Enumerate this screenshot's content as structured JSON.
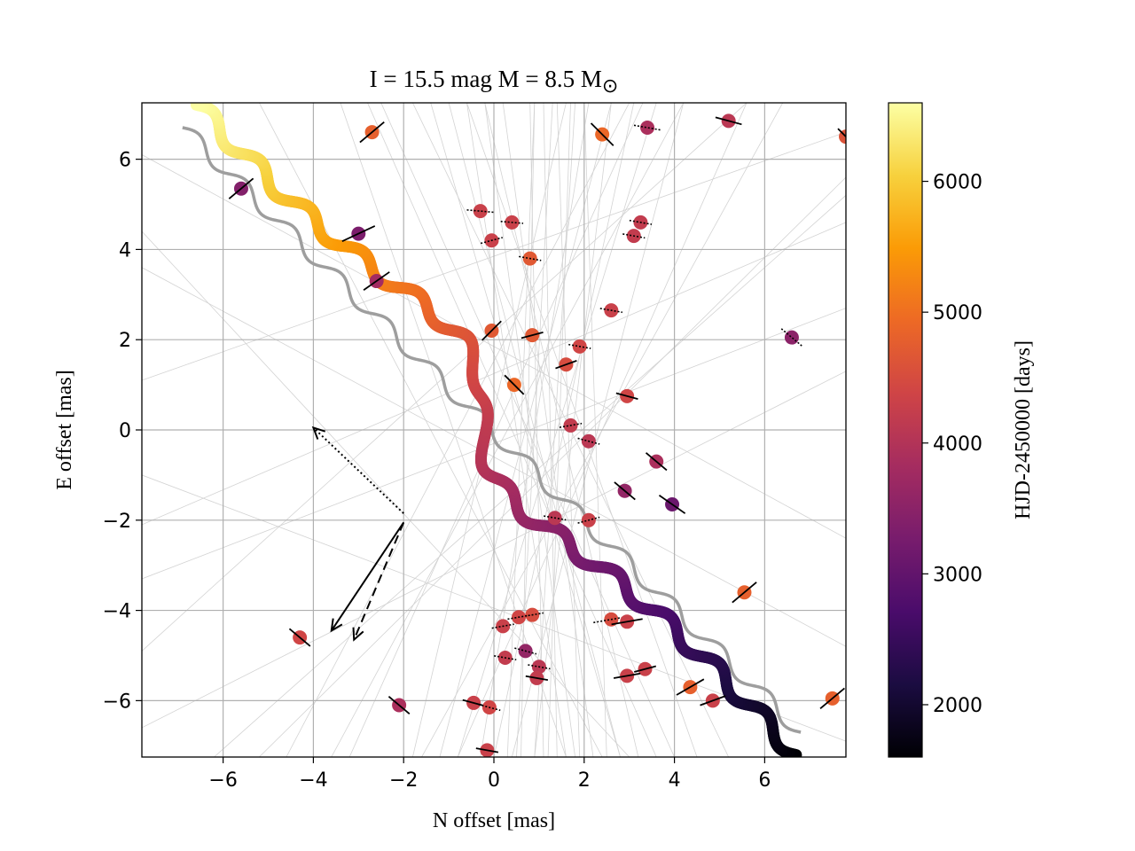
{
  "chart_data": {
    "type": "scatter",
    "title": "I = 15.5 mag  M = 8.5 M⊙",
    "title_parts": {
      "main": "I = 15.5 mag  M = 8.5 M",
      "subscript": "⊙"
    },
    "xlabel": "N offset [mas]",
    "ylabel": "E offset [mas]",
    "xlim": [
      -7.8,
      7.8
    ],
    "ylim": [
      -7.25,
      7.25
    ],
    "xticks": [
      -6,
      -4,
      -2,
      0,
      2,
      4,
      6
    ],
    "yticks": [
      -6,
      -4,
      -2,
      0,
      2,
      4,
      6
    ],
    "xtick_labels": [
      "−6",
      "−4",
      "−2",
      "0",
      "2",
      "4",
      "6"
    ],
    "ytick_labels": [
      "−6",
      "−4",
      "−2",
      "0",
      "2",
      "4",
      "6"
    ],
    "grid": true,
    "colorbar": {
      "label": "HJD-2450000 [days]",
      "range": [
        1600,
        6600
      ],
      "ticks": [
        2000,
        3000,
        4000,
        5000,
        6000
      ],
      "tick_labels": [
        "2000",
        "3000",
        "4000",
        "5000",
        "6000"
      ],
      "colormap": "inferno",
      "colors": [
        "#000004",
        "#1b0c41",
        "#4a0c6b",
        "#781c6d",
        "#a52c60",
        "#cf4446",
        "#ed6925",
        "#fb9b06",
        "#f7d13d",
        "#fcffa4"
      ]
    },
    "apparent_track": {
      "description": "thick colored source track",
      "start": [
        6.7,
        -7.2
      ],
      "end": [
        -6.6,
        7.2
      ],
      "time_range": [
        1600,
        6600
      ],
      "wiggle_amplitude": 0.17,
      "wiggle_periods": 13,
      "deflection_amplitude": 1.05,
      "deflection_center": [
        -0.3,
        0.3
      ],
      "deflection_width": 3.0
    },
    "reference_track": {
      "description": "gray undeflected reference track",
      "start": [
        6.8,
        -6.7
      ],
      "end": [
        -6.9,
        6.7
      ],
      "wiggle_amplitude": 0.15,
      "wiggle_periods": 13,
      "color": "#9e9e9e"
    },
    "background_lines": {
      "color": "#d3d3d3",
      "lines": [
        [
          -0.3,
          -7.25,
          2.1,
          7.25
        ],
        [
          0.5,
          -7.25,
          1.3,
          7.25
        ],
        [
          1.1,
          -7.25,
          0.8,
          7.25
        ],
        [
          0.9,
          -7.25,
          1.8,
          7.25
        ],
        [
          -1.2,
          -7.25,
          2.6,
          7.25
        ],
        [
          2.2,
          -7.25,
          0.2,
          7.25
        ],
        [
          1.6,
          -7.25,
          -0.6,
          7.25
        ],
        [
          2.8,
          -7.25,
          -1.0,
          7.25
        ],
        [
          0.0,
          -7.25,
          3.1,
          7.25
        ],
        [
          -0.8,
          -7.25,
          3.6,
          7.25
        ],
        [
          3.2,
          -7.25,
          -0.2,
          7.25
        ],
        [
          1.9,
          -7.25,
          1.4,
          7.25
        ],
        [
          -3.6,
          -7.25,
          4.2,
          7.25
        ],
        [
          4.0,
          -7.25,
          -2.5,
          7.25
        ],
        [
          -4.6,
          -7.25,
          3.0,
          7.25
        ],
        [
          5.2,
          -7.25,
          -1.8,
          7.25
        ],
        [
          0.3,
          -7.25,
          0.9,
          7.25
        ],
        [
          1.4,
          -7.25,
          1.1,
          7.25
        ],
        [
          2.5,
          -7.25,
          2.0,
          7.25
        ],
        [
          -1.8,
          -7.25,
          1.6,
          7.25
        ],
        [
          -7.8,
          -2.1,
          7.8,
          4.6
        ],
        [
          -7.8,
          -6.6,
          7.8,
          1.3
        ],
        [
          -7.8,
          3.6,
          7.8,
          -4.8
        ],
        [
          -6.2,
          -7.25,
          7.8,
          5.2
        ],
        [
          -7.8,
          -4.9,
          5.6,
          7.25
        ],
        [
          -7.8,
          6.1,
          7.8,
          -2.4
        ],
        [
          -7.8,
          1.1,
          7.8,
          6.6
        ],
        [
          -7.8,
          -1.0,
          7.8,
          -6.9
        ],
        [
          -5.2,
          7.25,
          2.4,
          -7.25
        ],
        [
          -2.8,
          7.25,
          3.6,
          -7.25
        ],
        [
          -0.6,
          7.25,
          4.5,
          -7.25
        ],
        [
          3.3,
          7.25,
          -3.2,
          -7.25
        ],
        [
          6.4,
          7.25,
          -1.6,
          -7.25
        ],
        [
          7.8,
          5.6,
          -5.2,
          -7.25
        ],
        [
          -7.8,
          4.4,
          3.0,
          -7.25
        ],
        [
          0.9,
          7.25,
          0.6,
          -7.25
        ],
        [
          1.7,
          7.25,
          1.2,
          -7.25
        ],
        [
          -0.2,
          7.25,
          1.8,
          -7.25
        ],
        [
          2.6,
          7.25,
          0.9,
          -7.25
        ],
        [
          -1.4,
          7.25,
          2.8,
          -7.25
        ],
        [
          4.2,
          7.25,
          0.4,
          -7.25
        ],
        [
          -3.4,
          7.25,
          1.6,
          -7.25
        ],
        [
          5.6,
          7.25,
          -0.8,
          -7.25
        ],
        [
          -7.8,
          -3.3,
          7.8,
          2.7
        ]
      ]
    },
    "points": [
      {
        "x": -2.7,
        "y": 6.6,
        "t": 4800,
        "angle": 40,
        "len": 0.7,
        "err": "solid"
      },
      {
        "x": 2.4,
        "y": 6.55,
        "t": 4900,
        "angle": -45,
        "len": 0.7,
        "err": "solid"
      },
      {
        "x": 3.4,
        "y": 6.7,
        "t": 3900,
        "angle": -10,
        "len": 0.6,
        "err": "dotted"
      },
      {
        "x": 5.2,
        "y": 6.85,
        "t": 4100,
        "angle": -15,
        "len": 0.6,
        "err": "solid"
      },
      {
        "x": 7.8,
        "y": 6.5,
        "t": 4600,
        "angle": -45,
        "len": 0.5,
        "err": "solid"
      },
      {
        "x": -5.6,
        "y": 5.35,
        "t": 3400,
        "angle": 40,
        "len": 0.7,
        "err": "solid"
      },
      {
        "x": -0.3,
        "y": 4.85,
        "t": 4300,
        "angle": -5,
        "len": 0.6,
        "err": "dotted"
      },
      {
        "x": 0.4,
        "y": 4.6,
        "t": 4300,
        "angle": -5,
        "len": 0.5,
        "err": "dotted"
      },
      {
        "x": 3.25,
        "y": 4.6,
        "t": 4200,
        "angle": -10,
        "len": 0.5,
        "err": "dotted"
      },
      {
        "x": -3.0,
        "y": 4.35,
        "t": 3300,
        "angle": 25,
        "len": 0.8,
        "err": "solid"
      },
      {
        "x": -0.05,
        "y": 4.2,
        "t": 4300,
        "angle": 15,
        "len": 0.5,
        "err": "dotted"
      },
      {
        "x": 3.1,
        "y": 4.3,
        "t": 4200,
        "angle": -10,
        "len": 0.5,
        "err": "dotted"
      },
      {
        "x": 0.8,
        "y": 3.8,
        "t": 4700,
        "angle": -10,
        "len": 0.5,
        "err": "dotted"
      },
      {
        "x": -2.6,
        "y": 3.3,
        "t": 3800,
        "angle": 35,
        "len": 0.7,
        "err": "solid"
      },
      {
        "x": 2.6,
        "y": 2.65,
        "t": 4300,
        "angle": -10,
        "len": 0.5,
        "err": "dotted"
      },
      {
        "x": -0.05,
        "y": 2.2,
        "t": 4700,
        "angle": 45,
        "len": 0.6,
        "err": "solid"
      },
      {
        "x": 0.85,
        "y": 2.1,
        "t": 4700,
        "angle": 15,
        "len": 0.5,
        "err": "solid"
      },
      {
        "x": 6.6,
        "y": 2.05,
        "t": 3500,
        "angle": -40,
        "len": 0.6,
        "err": "dotted"
      },
      {
        "x": 1.9,
        "y": 1.85,
        "t": 4400,
        "angle": -10,
        "len": 0.5,
        "err": "dotted"
      },
      {
        "x": 1.6,
        "y": 1.45,
        "t": 4500,
        "angle": 20,
        "len": 0.5,
        "err": "solid"
      },
      {
        "x": 0.45,
        "y": 1.0,
        "t": 4900,
        "angle": -45,
        "len": 0.6,
        "err": "solid"
      },
      {
        "x": 2.95,
        "y": 0.75,
        "t": 4400,
        "angle": -15,
        "len": 0.5,
        "err": "solid"
      },
      {
        "x": 1.7,
        "y": 0.1,
        "t": 4200,
        "angle": 10,
        "len": 0.5,
        "err": "dotted"
      },
      {
        "x": 2.1,
        "y": -0.25,
        "t": 4100,
        "angle": -15,
        "len": 0.5,
        "err": "dotted"
      },
      {
        "x": 3.6,
        "y": -0.7,
        "t": 3900,
        "angle": -40,
        "len": 0.6,
        "err": "solid"
      },
      {
        "x": 2.9,
        "y": -1.35,
        "t": 3600,
        "angle": -40,
        "len": 0.6,
        "err": "solid"
      },
      {
        "x": 3.95,
        "y": -1.65,
        "t": 3100,
        "angle": -35,
        "len": 0.7,
        "err": "solid"
      },
      {
        "x": 1.35,
        "y": -1.95,
        "t": 4100,
        "angle": -10,
        "len": 0.5,
        "err": "dotted"
      },
      {
        "x": 2.1,
        "y": -2.0,
        "t": 4300,
        "angle": 15,
        "len": 0.5,
        "err": "dotted"
      },
      {
        "x": 5.55,
        "y": -3.6,
        "t": 4800,
        "angle": 40,
        "len": 0.7,
        "err": "solid"
      },
      {
        "x": 2.6,
        "y": -4.2,
        "t": 4500,
        "angle": 10,
        "len": 0.8,
        "err": "dotted"
      },
      {
        "x": 2.95,
        "y": -4.25,
        "t": 4300,
        "angle": 10,
        "len": 0.7,
        "err": "solid"
      },
      {
        "x": 0.85,
        "y": -4.1,
        "t": 4500,
        "angle": 10,
        "len": 0.5,
        "err": "dotted"
      },
      {
        "x": 0.55,
        "y": -4.15,
        "t": 4400,
        "angle": 10,
        "len": 0.5,
        "err": "dotted"
      },
      {
        "x": 0.2,
        "y": -4.35,
        "t": 4300,
        "angle": 10,
        "len": 0.5,
        "err": "dotted"
      },
      {
        "x": -4.3,
        "y": -4.6,
        "t": 4400,
        "angle": -40,
        "len": 0.6,
        "err": "solid"
      },
      {
        "x": 0.7,
        "y": -4.9,
        "t": 3600,
        "angle": -15,
        "len": 0.5,
        "err": "dotted"
      },
      {
        "x": 0.25,
        "y": -5.05,
        "t": 4200,
        "angle": -10,
        "len": 0.5,
        "err": "dotted"
      },
      {
        "x": 1.0,
        "y": -5.25,
        "t": 4100,
        "angle": -10,
        "len": 0.5,
        "err": "dotted"
      },
      {
        "x": 3.35,
        "y": -5.3,
        "t": 4300,
        "angle": 15,
        "len": 0.5,
        "err": "solid"
      },
      {
        "x": 0.95,
        "y": -5.5,
        "t": 4200,
        "angle": -10,
        "len": 0.5,
        "err": "solid"
      },
      {
        "x": 2.95,
        "y": -5.45,
        "t": 4300,
        "angle": 10,
        "len": 0.6,
        "err": "solid"
      },
      {
        "x": 4.35,
        "y": -5.7,
        "t": 4800,
        "angle": 30,
        "len": 0.7,
        "err": "solid"
      },
      {
        "x": -2.1,
        "y": -6.1,
        "t": 3900,
        "angle": -40,
        "len": 0.6,
        "err": "solid"
      },
      {
        "x": -0.45,
        "y": -6.05,
        "t": 4300,
        "angle": -15,
        "len": 0.5,
        "err": "solid"
      },
      {
        "x": -0.1,
        "y": -6.15,
        "t": 4400,
        "angle": -15,
        "len": 0.5,
        "err": "dotted"
      },
      {
        "x": 4.85,
        "y": -6.0,
        "t": 4300,
        "angle": 20,
        "len": 0.6,
        "err": "solid"
      },
      {
        "x": 7.5,
        "y": -5.95,
        "t": 4800,
        "angle": 40,
        "len": 0.7,
        "err": "solid"
      },
      {
        "x": -0.15,
        "y": -7.1,
        "t": 4300,
        "angle": -10,
        "len": 0.5,
        "err": "solid"
      }
    ],
    "arrows": [
      {
        "from": [
          -2.0,
          -1.85
        ],
        "to": [
          -4.0,
          0.05
        ],
        "style": "dotted"
      },
      {
        "from": [
          -2.0,
          -2.05
        ],
        "to": [
          -3.6,
          -4.45
        ],
        "style": "solid"
      },
      {
        "from": [
          -2.0,
          -2.05
        ],
        "to": [
          -3.1,
          -4.65
        ],
        "style": "dashed"
      }
    ]
  }
}
